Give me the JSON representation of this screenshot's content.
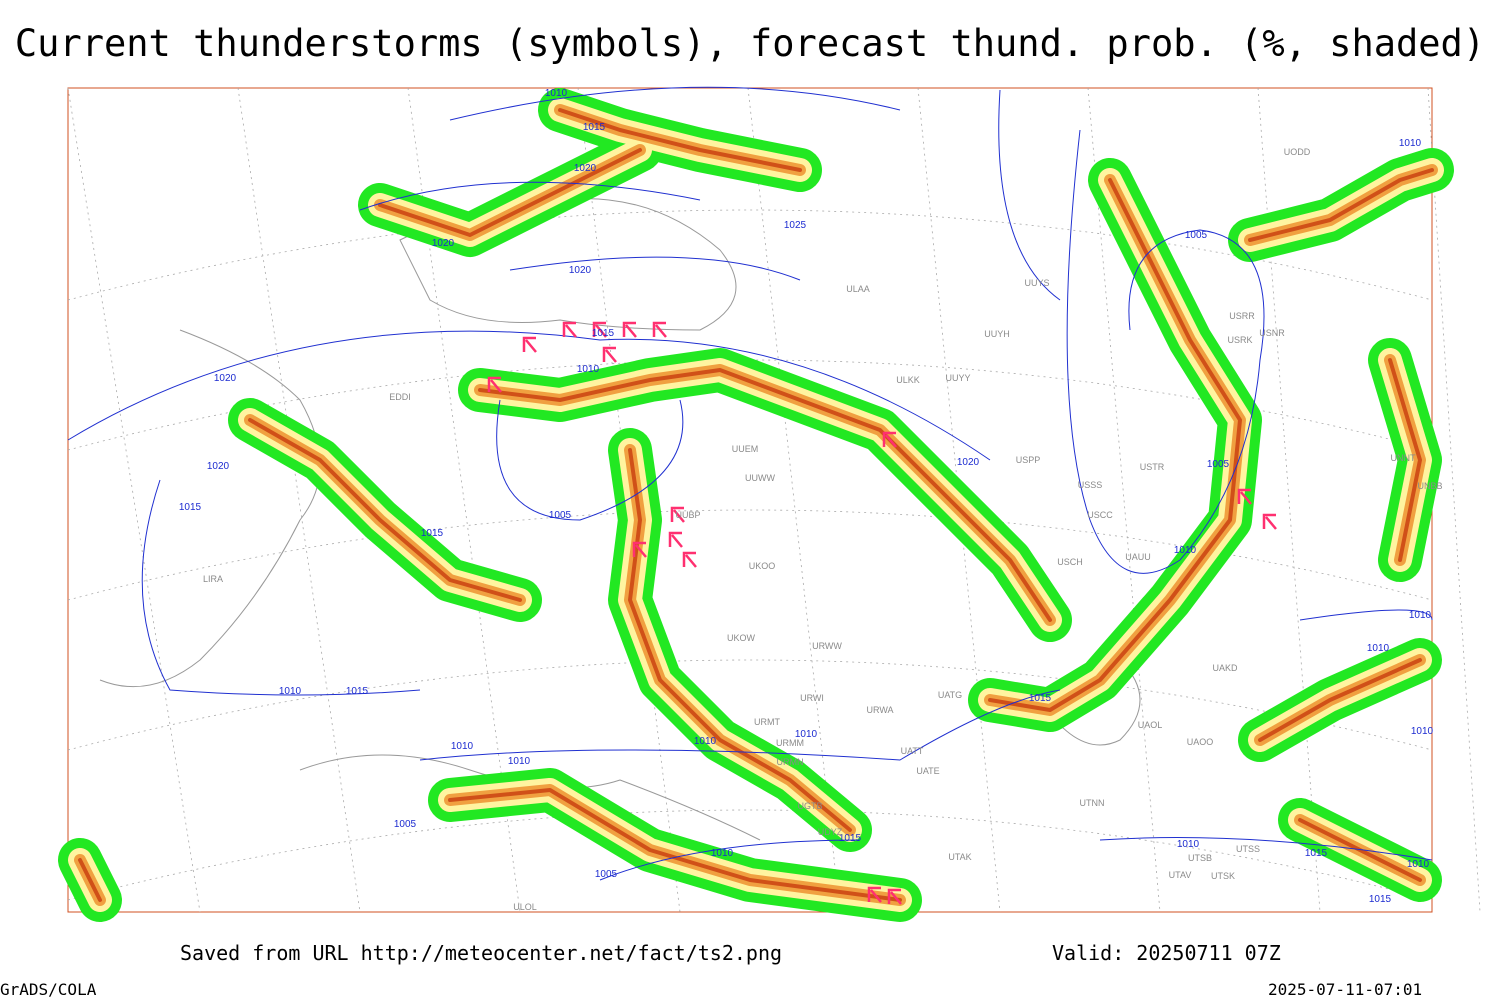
{
  "title": "Current thunderstorms (symbols), forecast thund. prob. (%, shaded)",
  "footer": {
    "saved": "Saved from URL http://meteocenter.net/fact/ts2.png",
    "valid": "Valid: 20250711 07Z",
    "software": "GrADS/COLA",
    "timestamp": "2025-07-11-07:01"
  },
  "isobar_labels": [
    1010,
    1015,
    1020,
    1025,
    1020,
    1020,
    1015,
    1010,
    1020,
    1020,
    1015,
    1005,
    1015,
    1020,
    1005,
    1005,
    1010,
    1010,
    1010,
    1015,
    1010,
    1015,
    1010,
    1010,
    1010,
    1010,
    1015,
    1010,
    1005,
    1005,
    1010,
    1015,
    1010,
    1015,
    1010,
    1010
  ],
  "stations": [
    "ULAA",
    "UUYS",
    "UUYH",
    "ULKK",
    "UUYY",
    "UUEM",
    "UUWW",
    "USPP",
    "USSS",
    "USTR",
    "USCC",
    "USCH",
    "UAUU",
    "UKOO",
    "UKOW",
    "URWW",
    "URWI",
    "UATG",
    "URWA",
    "UATE",
    "UATT",
    "UAOL",
    "UAOO",
    "UAKD",
    "UTNN",
    "UTAK",
    "UTAV",
    "UTSK",
    "UTSB",
    "UTSS",
    "UODD",
    "USRK",
    "USRR",
    "USNR",
    "UNNT",
    "UNBB",
    "LIRA",
    "EDDI",
    "ULOL",
    "URMT",
    "URMM",
    "URMN",
    "UGTB",
    "UDYZ",
    "UUBP"
  ]
}
